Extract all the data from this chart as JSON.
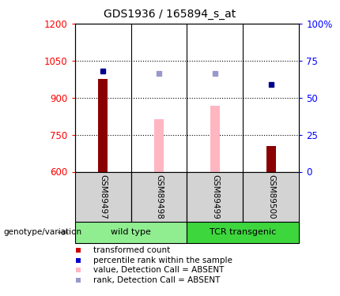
{
  "title": "GDS1936 / 165894_s_at",
  "samples": [
    "GSM89497",
    "GSM89498",
    "GSM89499",
    "GSM89500"
  ],
  "groups": [
    {
      "name": "wild type",
      "samples": [
        "GSM89497",
        "GSM89498"
      ],
      "color": "#90EE90"
    },
    {
      "name": "TCR transgenic",
      "samples": [
        "GSM89499",
        "GSM89500"
      ],
      "color": "#3DD63D"
    }
  ],
  "ylim_left": [
    600,
    1200
  ],
  "ylim_right": [
    0,
    100
  ],
  "yticks_left": [
    600,
    750,
    900,
    1050,
    1200
  ],
  "yticks_right": [
    0,
    25,
    50,
    75,
    100
  ],
  "ytick_labels_right": [
    "0",
    "25",
    "50",
    "75",
    "100%"
  ],
  "bars": {
    "GSM89497": {
      "value": 975,
      "absent": false
    },
    "GSM89498": {
      "value": 812,
      "absent": true
    },
    "GSM89499": {
      "value": 868,
      "absent": true
    },
    "GSM89500": {
      "value": 703,
      "absent": false
    }
  },
  "rank_dots": {
    "GSM89497": {
      "rank_value": 1008,
      "absent": false
    },
    "GSM89498": {
      "rank_value": 1000,
      "absent": true
    },
    "GSM89499": {
      "rank_value": 1000,
      "absent": true
    },
    "GSM89500": {
      "rank_value": 955,
      "absent": false
    }
  },
  "bar_color_present": "#8B0000",
  "bar_color_absent": "#FFB6C1",
  "dot_color_present": "#00008B",
  "dot_color_absent": "#9999CC",
  "legend_items": [
    {
      "label": "transformed count",
      "color": "#CC0000"
    },
    {
      "label": "percentile rank within the sample",
      "color": "#0000CC"
    },
    {
      "label": "value, Detection Call = ABSENT",
      "color": "#FFB6C1"
    },
    {
      "label": "rank, Detection Call = ABSENT",
      "color": "#9999CC"
    }
  ],
  "genotype_label": "genotype/variation"
}
